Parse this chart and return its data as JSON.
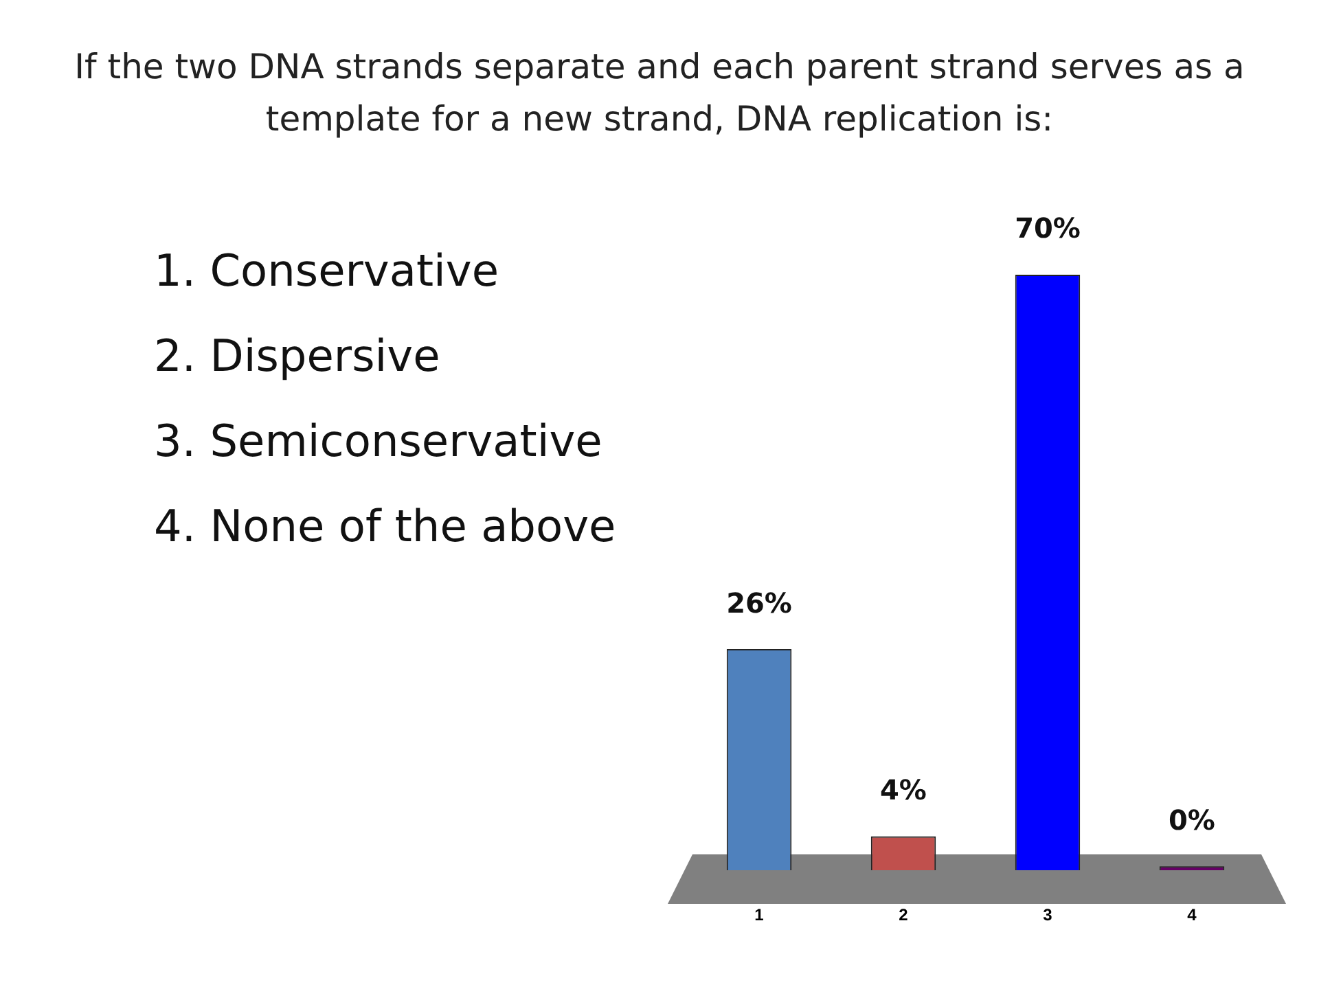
{
  "chart_data": {
    "type": "bar",
    "title": "If the two DNA strands separate and each parent strand serves as a template for a new strand, DNA replication is:",
    "categories": [
      "1",
      "2",
      "3",
      "4"
    ],
    "values": [
      26,
      4,
      70,
      0
    ],
    "value_labels": [
      "26%",
      "4%",
      "70%",
      "0%"
    ],
    "colors": [
      "#4f81bd",
      "#c0504d",
      "#0000ff",
      "#660066"
    ],
    "tick_labels": "x",
    "grid": false,
    "legend": false,
    "annotations": [
      "1. Conservative",
      "2. Dispersive",
      "3. Semiconservative",
      "4. None of the above"
    ]
  }
}
